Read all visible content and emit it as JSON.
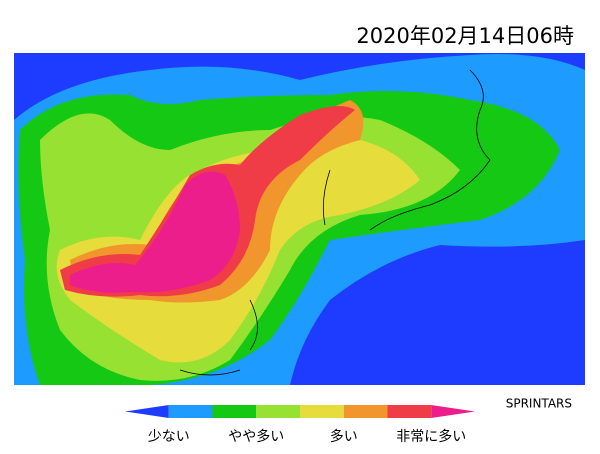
{
  "header": {
    "title": "2020年02月14日06時",
    "credit": "SPRINTARS"
  },
  "legend": {
    "labels": [
      "少ない",
      "やや多い",
      "多い",
      "非常に多い"
    ],
    "colors": [
      "#1e3cff",
      "#1e9bff",
      "#14c814",
      "#96e132",
      "#e6dc3c",
      "#f0962d",
      "#f03c46",
      "#eb1e8c"
    ]
  }
}
